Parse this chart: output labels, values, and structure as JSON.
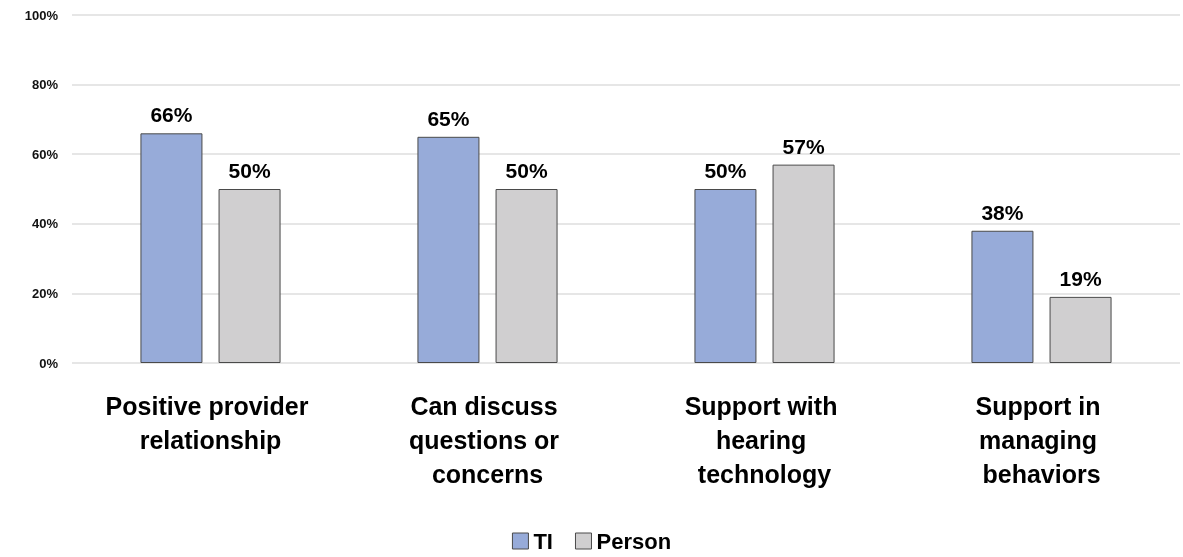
{
  "chart_data": {
    "type": "bar",
    "categories": [
      "Positive provider relationship",
      "Can discuss questions or concerns",
      "Support with hearing technology",
      "Support in managing behaviors"
    ],
    "series": [
      {
        "name": "TI",
        "color": "#97abd9",
        "values": [
          66,
          65,
          50,
          38
        ],
        "value_labels": [
          "66%",
          "65%",
          "50%",
          "38%"
        ]
      },
      {
        "name": "Person",
        "color": "#d0cfd0",
        "values": [
          50,
          50,
          57,
          19
        ],
        "value_labels": [
          "50%",
          "50%",
          "57%",
          "19%"
        ]
      }
    ],
    "ylim": [
      0,
      100
    ],
    "yticks": [
      {
        "value": 0,
        "label": "0%"
      },
      {
        "value": 20,
        "label": "20%"
      },
      {
        "value": 40,
        "label": "40%"
      },
      {
        "value": 60,
        "label": "60%"
      },
      {
        "value": 80,
        "label": "80%"
      },
      {
        "value": 100,
        "label": "100%"
      }
    ],
    "grid": "y",
    "legend": "bottom"
  }
}
